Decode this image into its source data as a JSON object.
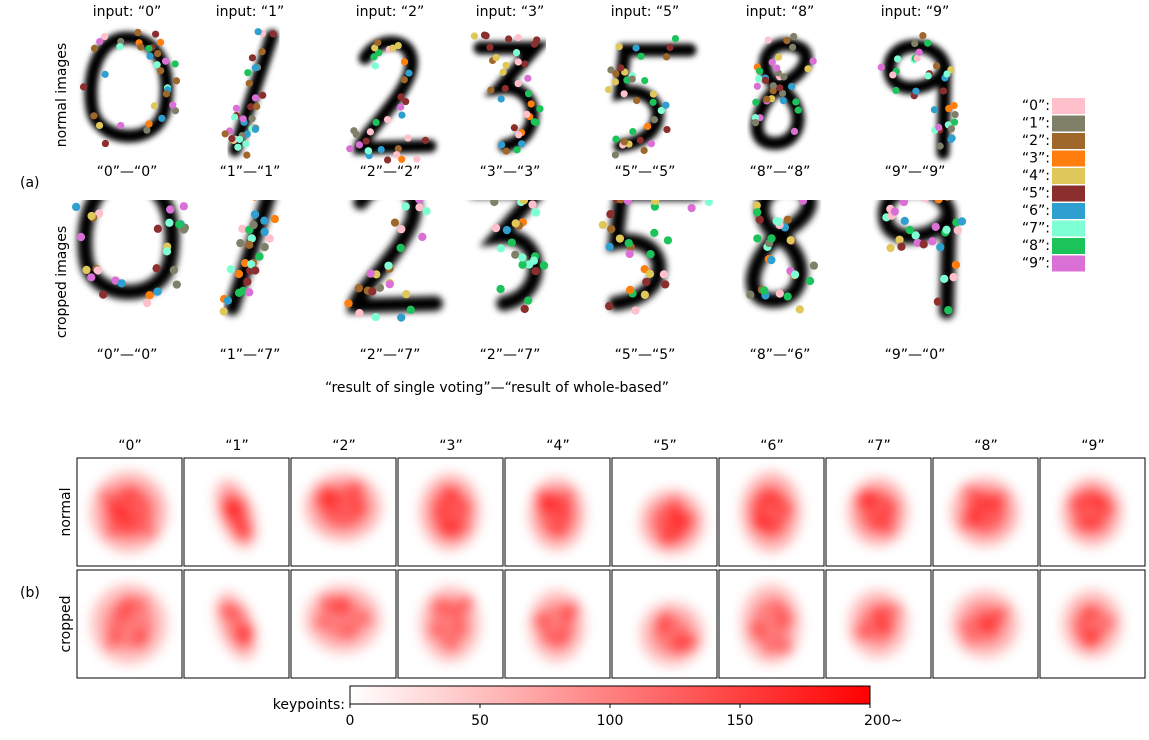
{
  "panel_a": {
    "label": "(a)",
    "row_labels": [
      "normal images",
      "cropped images"
    ],
    "inputs": [
      "input: “0”",
      "input: “1”",
      "input: “2”",
      "input: “3”",
      "input: “5”",
      "input: “8”",
      "input: “9”"
    ],
    "normal_results": [
      "“0”—“0”",
      "“1”—“1”",
      "“2”—“2”",
      "“3”—“3”",
      "“5”—“5”",
      "“8”—“8”",
      "“9”—“9”"
    ],
    "cropped_results": [
      "“0”—“0”",
      "“1”—“7”",
      "“2”—“7”",
      "“2”—“7”",
      "“5”—“5”",
      "“8”—“6”",
      "“9”—“0”"
    ],
    "caption": "“result of single voting”—“result of whole-based”",
    "legend": [
      {
        "name": "“0”:",
        "color": "#ffc0cb"
      },
      {
        "name": "“1”:",
        "color": "#808069"
      },
      {
        "name": "“2”:",
        "color": "#a0672a"
      },
      {
        "name": "“3”:",
        "color": "#ff7f0e"
      },
      {
        "name": "“4”:",
        "color": "#e0c75a"
      },
      {
        "name": "“5”:",
        "color": "#8b2e2e"
      },
      {
        "name": "“6”:",
        "color": "#2e9fcf"
      },
      {
        "name": "“7”:",
        "color": "#7fffd4"
      },
      {
        "name": "“8”:",
        "color": "#1cc35a"
      },
      {
        "name": "“9”:",
        "color": "#da70d6"
      }
    ]
  },
  "panel_b": {
    "label": "(b)",
    "columns": [
      "“0”",
      "“1”",
      "“2”",
      "“3”",
      "“4”",
      "“5”",
      "“6”",
      "“7”",
      "“8”",
      "“9”"
    ],
    "row_labels": [
      "normal",
      "cropped"
    ],
    "colorbar": {
      "label": "keypoints:",
      "lim": [
        0,
        200
      ],
      "ticks": [
        0,
        50,
        100,
        150,
        {
          "value": 200,
          "label": "200~"
        }
      ],
      "colors": [
        "#ffffff",
        "#ff0000"
      ]
    }
  }
}
